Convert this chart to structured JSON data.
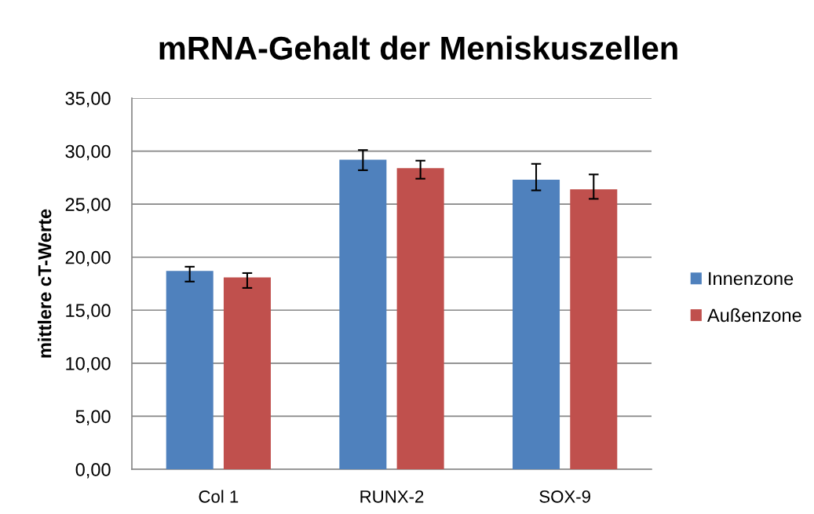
{
  "chart_data": {
    "type": "bar",
    "title": "mRNA-Gehalt der Meniskuszellen",
    "ylabel": "mittlere cT-Werte",
    "categories": [
      "Col 1",
      "RUNX-2",
      "SOX-9"
    ],
    "series": [
      {
        "name": "Innenzone",
        "color": "#4f81bd",
        "values": [
          18.7,
          29.2,
          27.3
        ],
        "errors": [
          [
            17.7,
            19.1
          ],
          [
            28.2,
            30.1
          ],
          [
            26.3,
            28.8
          ]
        ]
      },
      {
        "name": "Außenzone",
        "color": "#c0504d",
        "values": [
          18.1,
          28.4,
          26.4
        ],
        "errors": [
          [
            17.1,
            18.5
          ],
          [
            27.4,
            29.1
          ],
          [
            25.5,
            27.8
          ]
        ]
      }
    ],
    "ylim": [
      0,
      35
    ],
    "yticks": [
      {
        "value": 0,
        "label": "0,00"
      },
      {
        "value": 5,
        "label": "5,00"
      },
      {
        "value": 10,
        "label": "10,00"
      },
      {
        "value": 15,
        "label": "15,00"
      },
      {
        "value": 20,
        "label": "20,00"
      },
      {
        "value": 25,
        "label": "25,00"
      },
      {
        "value": 30,
        "label": "30,00"
      },
      {
        "value": 35,
        "label": "35,00"
      }
    ],
    "grid": "y",
    "legend": "right"
  }
}
